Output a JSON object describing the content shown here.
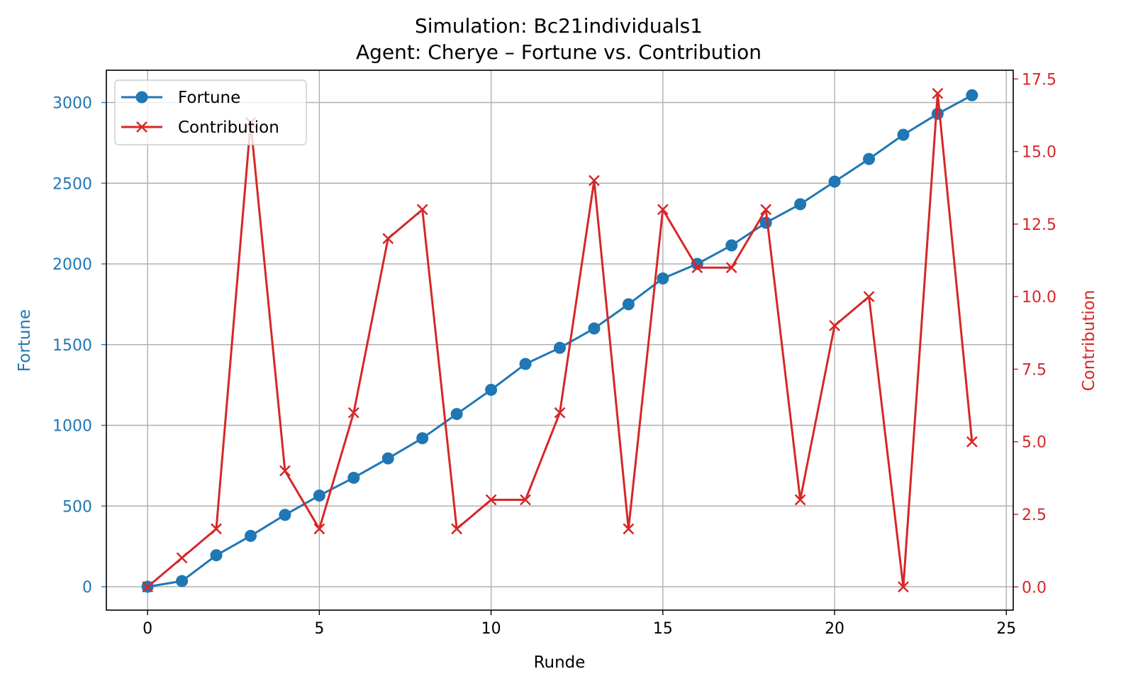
{
  "chart_data": {
    "type": "line",
    "title": "Simulation: Bc21individuals1",
    "subtitle": "Agent: Cherye – Fortune vs. Contribution",
    "xlabel": "Runde",
    "ylabel_left": "Fortune",
    "ylabel_right": "Contribution",
    "x": [
      0,
      1,
      2,
      3,
      4,
      5,
      6,
      7,
      8,
      9,
      10,
      11,
      12,
      13,
      14,
      15,
      16,
      17,
      18,
      19,
      20,
      21,
      22,
      23,
      24
    ],
    "xlim": [
      -1.2,
      25.2
    ],
    "ylim_left": [
      -145,
      3200
    ],
    "ylim_right": [
      -0.8,
      17.8
    ],
    "x_ticks": [
      0,
      5,
      10,
      15,
      20,
      25
    ],
    "y_ticks_left": [
      0,
      500,
      1000,
      1500,
      2000,
      2500,
      3000
    ],
    "y_ticks_right": [
      0.0,
      2.5,
      5.0,
      7.5,
      10.0,
      12.5,
      15.0,
      17.5
    ],
    "y_tick_labels_right": [
      "0.0",
      "2.5",
      "5.0",
      "7.5",
      "10.0",
      "12.5",
      "15.0",
      "17.5"
    ],
    "grid": true,
    "legend_position": "top-left",
    "series": [
      {
        "name": "Fortune",
        "axis": "left",
        "color": "#1f77b4",
        "marker": "circle",
        "values": [
          0,
          35,
          195,
          315,
          445,
          565,
          675,
          795,
          920,
          1070,
          1220,
          1380,
          1480,
          1600,
          1750,
          1910,
          2000,
          2115,
          2255,
          2370,
          2510,
          2650,
          2800,
          2930,
          3045
        ]
      },
      {
        "name": "Contribution",
        "axis": "right",
        "color": "#d62728",
        "marker": "x",
        "values": [
          0,
          1,
          2,
          16,
          4,
          2,
          6,
          12,
          13,
          2,
          3,
          3,
          6,
          14,
          2,
          13,
          11,
          11,
          13,
          3,
          9,
          10,
          0,
          17,
          5
        ]
      }
    ]
  }
}
